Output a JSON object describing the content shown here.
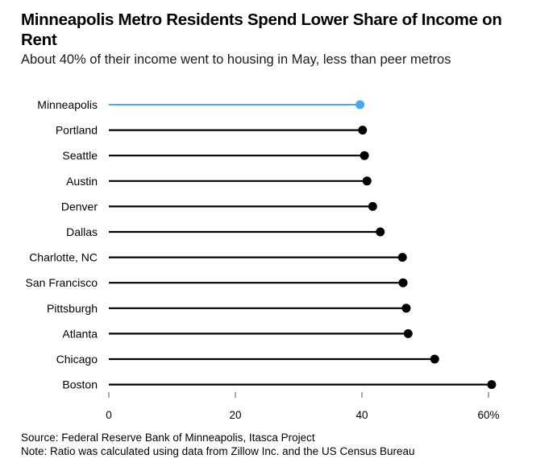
{
  "chart_data": {
    "type": "lollipop",
    "title": "Minneapolis Metro Residents Spend Lower Share of Income on Rent",
    "subtitle": "About 40% of their income went to housing in May, less than peer metros",
    "xlabel": "",
    "ylabel": "",
    "xlim": [
      0,
      60
    ],
    "x_ticks": [
      0,
      20,
      40,
      60
    ],
    "x_tick_labels": [
      "0",
      "20",
      "40",
      "60%"
    ],
    "grid": false,
    "categories": [
      "Minneapolis",
      "Portland",
      "Seattle",
      "Austin",
      "Denver",
      "Dallas",
      "Charlotte, NC",
      "San Francisco",
      "Pittsburgh",
      "Atlanta",
      "Chicago",
      "Boston"
    ],
    "values": [
      39.7,
      40.1,
      40.4,
      40.8,
      41.7,
      42.9,
      46.4,
      46.5,
      47.0,
      47.3,
      51.5,
      60.5
    ],
    "highlight": "Minneapolis",
    "colors": {
      "highlight": "#4aa8f0",
      "default": "#000000"
    }
  },
  "footer": {
    "source": "Source: Federal Reserve Bank of Minneapolis, Itasca Project",
    "note": "Note: Ratio was calculated using data from Zillow Inc. and the US Census Bureau"
  }
}
